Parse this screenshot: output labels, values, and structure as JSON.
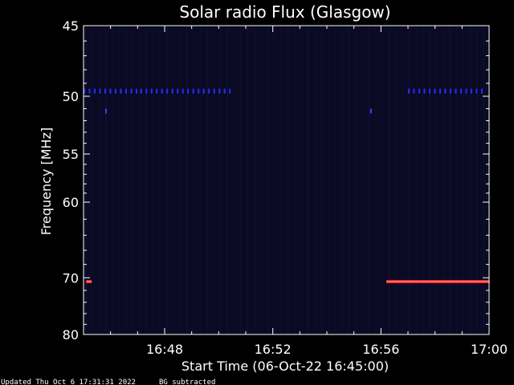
{
  "chart_data": {
    "type": "heatmap",
    "title": "Solar radio Flux (Glasgow)",
    "xlabel": "Start Time (06-Oct-22 16:45:00)",
    "ylabel": "Frequency [MHz]",
    "x_ticks": [
      "16:48",
      "16:52",
      "16:56",
      "17:00"
    ],
    "x_tick_minutes": [
      48,
      52,
      56,
      60
    ],
    "x_range_minutes": [
      45,
      60
    ],
    "y_ticks": [
      45,
      50,
      55,
      60,
      70,
      80
    ],
    "y_range": [
      45,
      80
    ],
    "y_scale": "reciprocal",
    "grid": false,
    "features": [
      {
        "freq_mhz": 49.6,
        "start_minute": 45.0,
        "end_minute": 47.1,
        "color": "#2b2bff"
      },
      {
        "freq_mhz": 49.6,
        "start_minute": 47.1,
        "end_minute": 50.5,
        "color": "#2b2bff"
      },
      {
        "freq_mhz": 49.6,
        "start_minute": 57.0,
        "end_minute": 59.8,
        "color": "#2b2bff"
      },
      {
        "freq_mhz": 51.2,
        "start_minute": 45.8,
        "end_minute": 45.9,
        "color": "#4040ff"
      },
      {
        "freq_mhz": 51.2,
        "start_minute": 55.6,
        "end_minute": 55.7,
        "color": "#4040ff"
      },
      {
        "freq_mhz": 70.6,
        "start_minute": 45.1,
        "end_minute": 45.3,
        "color": "#ff2020"
      },
      {
        "freq_mhz": 70.6,
        "start_minute": 56.2,
        "end_minute": 60.0,
        "color": "#ff2020"
      }
    ],
    "colors": {
      "background": "#000000",
      "plot_bg": "#0a0a22",
      "axes": "#ffffff"
    }
  },
  "footer": {
    "updated": "Updated Thu Oct  6 17:31:31 2022",
    "note": "BG subtracted"
  }
}
